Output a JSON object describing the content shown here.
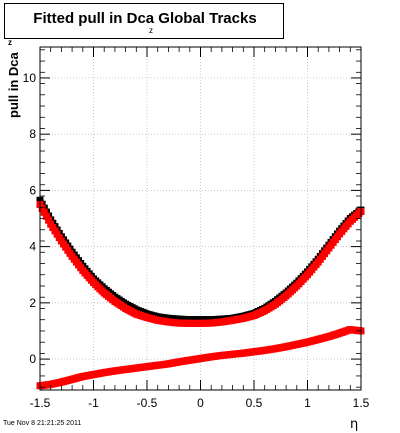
{
  "title": {
    "main": "Fitted pull in Dca Global Tracks",
    "subscript": "z"
  },
  "footer": {
    "timestamp": "Tue Nov  8 21:21:25 2011"
  },
  "chart_data": {
    "type": "scatter",
    "xlabel": "η",
    "ylabel": "pull in Dca",
    "ylabel_subscript": "z",
    "xlim": [
      -1.5,
      1.5
    ],
    "ylim": [
      -1.1,
      11.1
    ],
    "x_ticks": [
      -1.5,
      -1,
      -0.5,
      0,
      0.5,
      1,
      1.5
    ],
    "x_tick_labels": [
      "-1.5",
      "-1",
      "-0.5",
      "0",
      "0.5",
      "1",
      "1.5"
    ],
    "y_ticks": [
      0,
      2,
      4,
      6,
      8,
      10
    ],
    "y_tick_labels": [
      "0",
      "2",
      "4",
      "6",
      "8",
      "10"
    ],
    "grid": true,
    "colors": {
      "black": "#000000",
      "red": "#ff0000"
    },
    "series": [
      {
        "color": "#000000",
        "marker": "square",
        "x": [
          -1.5,
          -1.4,
          -1.3,
          -1.2,
          -1.1,
          -1.0,
          -0.9,
          -0.8,
          -0.7,
          -0.6,
          -0.5,
          -0.4,
          -0.3,
          -0.2,
          -0.1,
          0.0,
          0.1,
          0.2,
          0.3,
          0.4,
          0.5,
          0.6,
          0.7,
          0.8,
          0.9,
          1.0,
          1.1,
          1.2,
          1.3,
          1.4,
          1.5
        ],
        "y": [
          5.65,
          4.95,
          4.35,
          3.8,
          3.3,
          2.85,
          2.5,
          2.2,
          1.95,
          1.75,
          1.6,
          1.5,
          1.45,
          1.42,
          1.4,
          1.4,
          1.4,
          1.42,
          1.45,
          1.52,
          1.62,
          1.8,
          2.05,
          2.35,
          2.7,
          3.1,
          3.55,
          4.05,
          4.55,
          5.0,
          5.3
        ]
      },
      {
        "color": "#ff0000",
        "marker": "square",
        "x": [
          -1.5,
          -1.4,
          -1.3,
          -1.2,
          -1.1,
          -1.0,
          -0.9,
          -0.8,
          -0.7,
          -0.6,
          -0.5,
          -0.4,
          -0.3,
          -0.2,
          -0.1,
          0.0,
          0.1,
          0.2,
          0.3,
          0.4,
          0.5,
          0.6,
          0.7,
          0.8,
          0.9,
          1.0,
          1.1,
          1.2,
          1.3,
          1.4,
          1.5
        ],
        "y": [
          5.5,
          4.8,
          4.2,
          3.65,
          3.15,
          2.72,
          2.35,
          2.05,
          1.8,
          1.6,
          1.48,
          1.38,
          1.32,
          1.28,
          1.27,
          1.27,
          1.28,
          1.32,
          1.38,
          1.45,
          1.55,
          1.72,
          1.95,
          2.25,
          2.6,
          3.0,
          3.45,
          3.95,
          4.45,
          4.9,
          5.25
        ]
      },
      {
        "color": "#ff0000",
        "marker": "square",
        "x": [
          -1.5,
          -1.4,
          -1.3,
          -1.2,
          -1.1,
          -1.0,
          -0.9,
          -0.8,
          -0.7,
          -0.6,
          -0.5,
          -0.4,
          -0.3,
          -0.2,
          -0.1,
          0.0,
          0.1,
          0.2,
          0.3,
          0.4,
          0.5,
          0.6,
          0.7,
          0.8,
          0.9,
          1.0,
          1.1,
          1.2,
          1.3,
          1.4,
          1.5
        ],
        "y": [
          -0.95,
          -0.9,
          -0.82,
          -0.72,
          -0.62,
          -0.55,
          -0.48,
          -0.42,
          -0.37,
          -0.32,
          -0.27,
          -0.22,
          -0.17,
          -0.1,
          -0.04,
          0.02,
          0.08,
          0.13,
          0.17,
          0.21,
          0.26,
          0.31,
          0.37,
          0.44,
          0.52,
          0.6,
          0.7,
          0.8,
          0.92,
          1.05,
          1.0
        ]
      }
    ]
  }
}
